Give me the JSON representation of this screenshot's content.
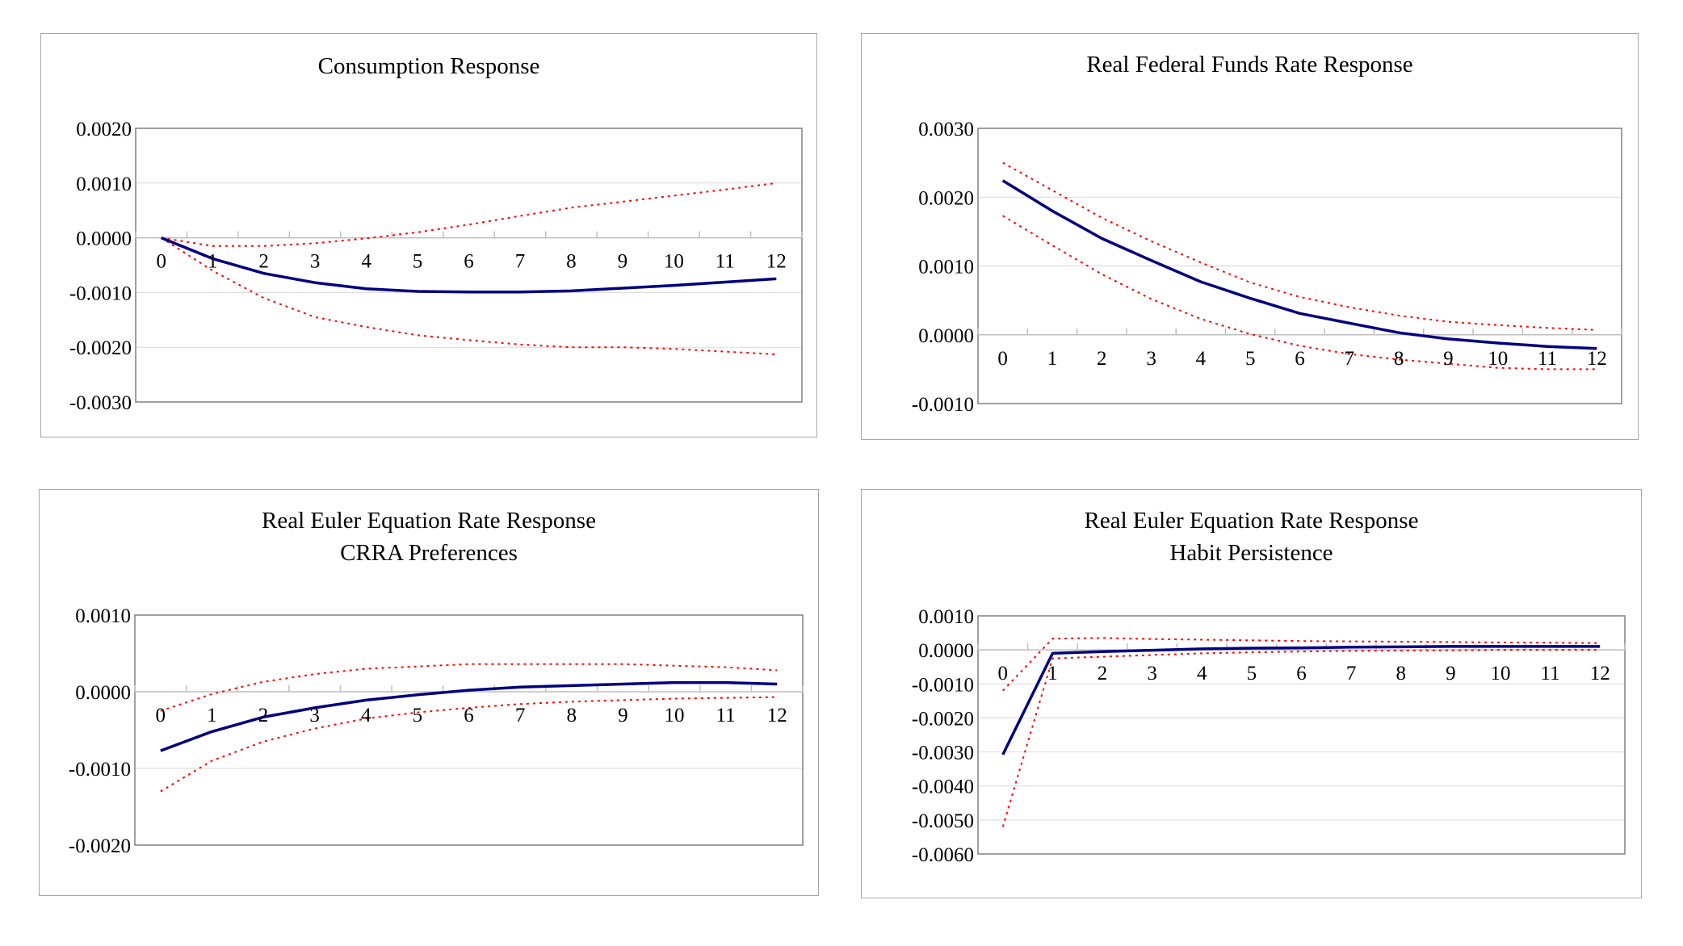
{
  "chart_data": [
    {
      "type": "line",
      "title": "Consumption Response",
      "subtitle": "",
      "x": [
        0,
        1,
        2,
        3,
        4,
        5,
        6,
        7,
        8,
        9,
        10,
        11,
        12
      ],
      "ylim": [
        -0.003,
        0.002
      ],
      "yticks": [
        "0.0020",
        "0.0010",
        "0.0000",
        "-0.0010",
        "-0.0020",
        "-0.0030"
      ],
      "grid": true,
      "legend": "none",
      "series": [
        {
          "style": "solid",
          "color": "#000080",
          "values": [
            0.0,
            -0.00038,
            -0.00065,
            -0.00082,
            -0.00093,
            -0.00098,
            -0.00099,
            -0.00099,
            -0.00097,
            -0.00092,
            -0.00087,
            -0.00081,
            -0.00075
          ]
        },
        {
          "style": "dotted",
          "color": "#ff0000",
          "values": [
            0.0,
            -0.00015,
            -0.00015,
            -0.0001,
            -1e-05,
            0.0001,
            0.00024,
            0.0004,
            0.00055,
            0.00066,
            0.00077,
            0.00088,
            0.001
          ]
        },
        {
          "style": "dotted",
          "color": "#ff0000",
          "values": [
            0.0,
            -0.0006,
            -0.0011,
            -0.00145,
            -0.00163,
            -0.00178,
            -0.00187,
            -0.00195,
            -0.002,
            -0.002,
            -0.00203,
            -0.00208,
            -0.00213
          ]
        }
      ]
    },
    {
      "type": "line",
      "title": "Real Federal Funds Rate Response",
      "subtitle": "",
      "x": [
        0,
        1,
        2,
        3,
        4,
        5,
        6,
        7,
        8,
        9,
        10,
        11,
        12
      ],
      "ylim": [
        -0.001,
        0.003
      ],
      "yticks": [
        "0.0030",
        "0.0020",
        "0.0010",
        "0.0000",
        "-0.0010"
      ],
      "grid": true,
      "legend": "none",
      "series": [
        {
          "style": "solid",
          "color": "#000080",
          "values": [
            0.00224,
            0.0018,
            0.0014,
            0.00108,
            0.00077,
            0.00053,
            0.00031,
            0.00017,
            3e-05,
            -6e-05,
            -0.00012,
            -0.00017,
            -0.0002
          ]
        },
        {
          "style": "dotted",
          "color": "#ff0000",
          "values": [
            0.0025,
            0.0021,
            0.0017,
            0.00136,
            0.00105,
            0.00076,
            0.00055,
            0.0004,
            0.00028,
            0.00019,
            0.00014,
            0.0001,
            7e-05
          ]
        },
        {
          "style": "dotted",
          "color": "#ff0000",
          "values": [
            0.00173,
            0.0013,
            0.00088,
            0.00052,
            0.00023,
            1e-05,
            -0.00016,
            -0.00028,
            -0.00036,
            -0.00042,
            -0.00048,
            -0.0005,
            -0.0005
          ]
        }
      ]
    },
    {
      "type": "line",
      "title": "Real Euler Equation Rate Response",
      "subtitle": "CRRA Preferences",
      "x": [
        0,
        1,
        2,
        3,
        4,
        5,
        6,
        7,
        8,
        9,
        10,
        11,
        12
      ],
      "ylim": [
        -0.002,
        0.001
      ],
      "yticks": [
        "0.0010",
        "0.0000",
        "-0.0010",
        "-0.0020"
      ],
      "grid": true,
      "legend": "none",
      "series": [
        {
          "style": "solid",
          "color": "#000080",
          "values": [
            -0.00077,
            -0.00052,
            -0.00033,
            -0.00021,
            -0.00011,
            -4e-05,
            2e-05,
            6e-05,
            8e-05,
            0.0001,
            0.00012,
            0.00012,
            0.0001
          ]
        },
        {
          "style": "dotted",
          "color": "#ff0000",
          "values": [
            -0.00025,
            -3e-05,
            0.00013,
            0.00023,
            0.0003,
            0.00033,
            0.00036,
            0.00036,
            0.00036,
            0.00036,
            0.00034,
            0.00032,
            0.00028
          ]
        },
        {
          "style": "dotted",
          "color": "#ff0000",
          "values": [
            -0.0013,
            -0.0009,
            -0.00065,
            -0.00048,
            -0.00035,
            -0.00027,
            -0.00021,
            -0.00016,
            -0.00013,
            -0.00011,
            -9e-05,
            -8e-05,
            -7e-05
          ]
        }
      ]
    },
    {
      "type": "line",
      "title": "Real Euler Equation Rate Response",
      "subtitle": "Habit Persistence",
      "x": [
        0,
        1,
        2,
        3,
        4,
        5,
        6,
        7,
        8,
        9,
        10,
        11,
        12
      ],
      "ylim": [
        -0.006,
        0.001
      ],
      "yticks": [
        "0.0010",
        "0.0000",
        "-0.0010",
        "-0.0020",
        "-0.0030",
        "-0.0040",
        "-0.0050",
        "-0.0060"
      ],
      "grid": true,
      "legend": "none",
      "series": [
        {
          "style": "solid",
          "color": "#000080",
          "values": [
            -0.00308,
            -0.0001,
            -5e-05,
            -1e-05,
            3e-05,
            5e-05,
            6e-05,
            8e-05,
            9e-05,
            0.0001,
            0.0001,
            0.0001,
            0.0001
          ]
        },
        {
          "style": "dotted",
          "color": "#ff0000",
          "values": [
            -0.0012,
            0.00033,
            0.00035,
            0.00032,
            0.0003,
            0.00028,
            0.00026,
            0.00025,
            0.00024,
            0.00023,
            0.00022,
            0.00021,
            0.0002
          ]
        },
        {
          "style": "dotted",
          "color": "#ff0000",
          "values": [
            -0.0052,
            -0.00025,
            -0.0002,
            -0.00015,
            -0.0001,
            -7e-05,
            -5e-05,
            -3e-05,
            -2e-05,
            -1e-05,
            0.0,
            0.0,
            0.0
          ]
        }
      ]
    }
  ]
}
